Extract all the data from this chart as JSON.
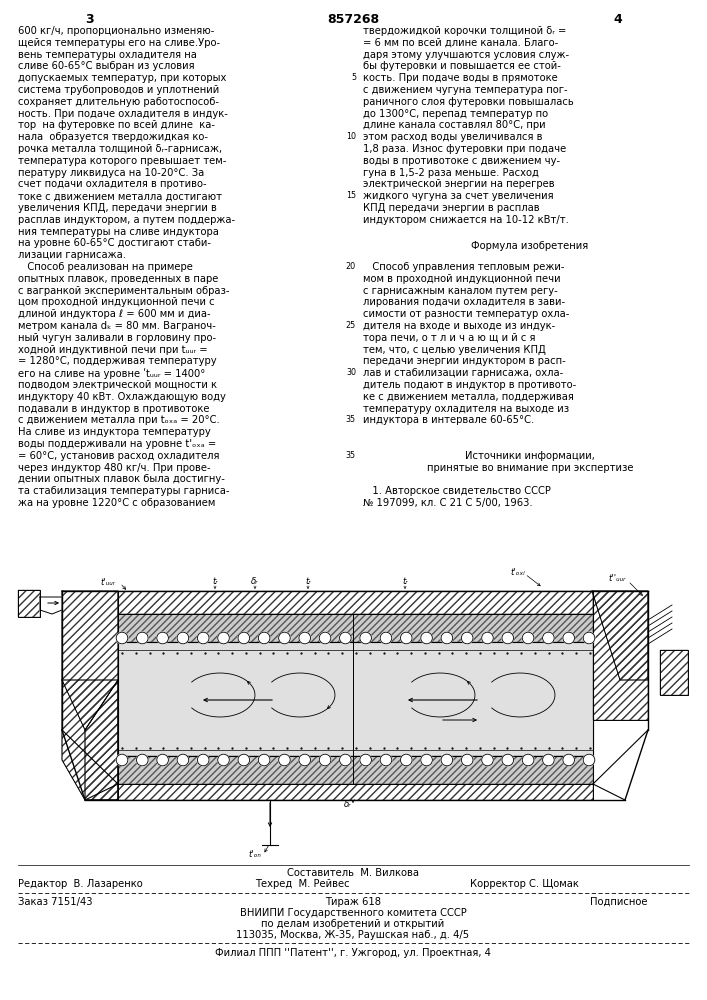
{
  "header_num": "857268",
  "page_left": "3",
  "page_right": "4",
  "left_col": [
    "600 кг/ч, пропорционально изменяю-",
    "щейся температуры его на сливе.Уро-",
    "вень температуры охладителя на",
    "сливе 60-65°С выбран из условия",
    "допускаемых температур, при которых",
    "система трубопроводов и уплотнений",
    "сохраняет длительную работоспособ-",
    "ность. При подаче охладителя в индук-",
    "тор  на футеровке по всей длине  ка-",
    "нала  образуется твердожидкая ко-",
    "рочка металла толщиной δᵣ-гарнисаж,",
    "температура которого превышает тем-",
    "пературу ликвидуса на 10-20°С. За",
    "счет подачи охладителя в противо-",
    "токе с движением металла достигают",
    "увеличения КПД, передачи энергии в",
    "расплав индуктором, а путем поддержа-",
    "ния температуры на сливе индуктора",
    "на уровне 60-65°С достигают стаби-",
    "лизации гарнисажа.",
    "   Способ реализован на примере",
    "опытных плавок, проведенных в паре",
    "с вагранкой экспериментальным образ-",
    "цом проходной индукционной печи с",
    "длиной индуктора ℓ = 600 мм и диа-",
    "метром канала dₖ = 80 мм. Ваграноч-",
    "ный чугун заливали в горловину про-",
    "ходной индуктивной печи при tᵤᵤᵣ =",
    "= 1280°С, поддерживая температуру",
    "его на сливе на уровне ʹtᵤᵤᵣ = 1400°",
    "подводом электрической мощности к",
    "индуктору 40 кВт. Охлаждающую воду",
    "подавали в индуктор в противотоке",
    "с движением металла при tₒₓₐ = 20°С.",
    "На сливе из индуктора температуру",
    "воды поддерживали на уровне t'ₒₓₐ ="
  ],
  "left_col2": [
    "= 60°С, установив расход охладителя",
    "через индуктор 480 кг/ч. При прове-",
    "дении опытных плавок была достигну-",
    "та стабилизация температуры гарниса-",
    "жа на уровне 1220°С с образованием"
  ],
  "right_col": [
    "твердожидкой корочки толщиной δᵣ =",
    "= 6 мм по всей длине канала. Благо-",
    "даря этому улучшаются условия служ-",
    "бы футеровки и повышается ее стой-",
    "кость. При подаче воды в прямотоке",
    "с движением чугуна температура пог-",
    "раничного слоя футеровки повышалась",
    "до 1300°С, перепад температур по",
    "длине канала составлял 80°С, при",
    "этом расход воды увеличивался в",
    "1,8 раза. Износ футеровки при подаче",
    "воды в противотоке с движением чу-",
    "гуна в 1,5-2 раза меньше. Расход",
    "электрической энергии на перегрев",
    "жидкого чугуна за счет увеличения",
    "КПД передачи энергии в расплав",
    "индуктором снижается на 10-12 кВт/т.",
    "",
    "Формула изобретения",
    "",
    "   Способ управления тепловым режи-",
    "мом в проходной индукционной печи",
    "с гарнисажным каналом путем регу-",
    "лирования подачи охладителя в зави-",
    "симости от разности температур охла-",
    "дителя на входе и выходе из индук-",
    "тора печи, о т л и ч а ю щ и й с я",
    "тем, что, с целью увеличения КПД",
    "передачи энергии индуктором в расп-",
    "лав и стабилизации гарнисажа, охла-",
    "дитель подают в индуктор в противото-",
    "ке с движением металла, поддерживая",
    "температуру охладителя на выходе из",
    "индуктора в интервале 60-65°С."
  ],
  "right_col2": [
    "   Источники информации,",
    "принятые во внимание при экспертизе",
    "",
    "   1. Авторское свидетельство СССР",
    "№ 197099, кл. С 21 С 5/00, 1963."
  ],
  "line_nums": {
    "4": "5",
    "9": "10",
    "14": "15",
    "20": "20",
    "25": "25",
    "29": "30",
    "33": "35"
  },
  "footer_composer": "Составитель  М. Вилкова",
  "footer_editor": "Редактор  В. Лазаренко",
  "footer_techred": "Техред  М. Рейвес",
  "footer_corrector": "Корректор С. Щомак",
  "footer_order": "Заказ 7151/43",
  "footer_circ": "Тираж 618",
  "footer_sub": "Подписное",
  "footer_org1": "ВНИИПИ Государственного комитета СССР",
  "footer_org2": "по делам изобретений и открытий",
  "footer_addr": "113035, Москва, Ж-35, Раушская наб., д. 4/5",
  "footer_branch": "Филиал ППП ''Патент'', г. Ужгород, ул. Проектная, 4"
}
